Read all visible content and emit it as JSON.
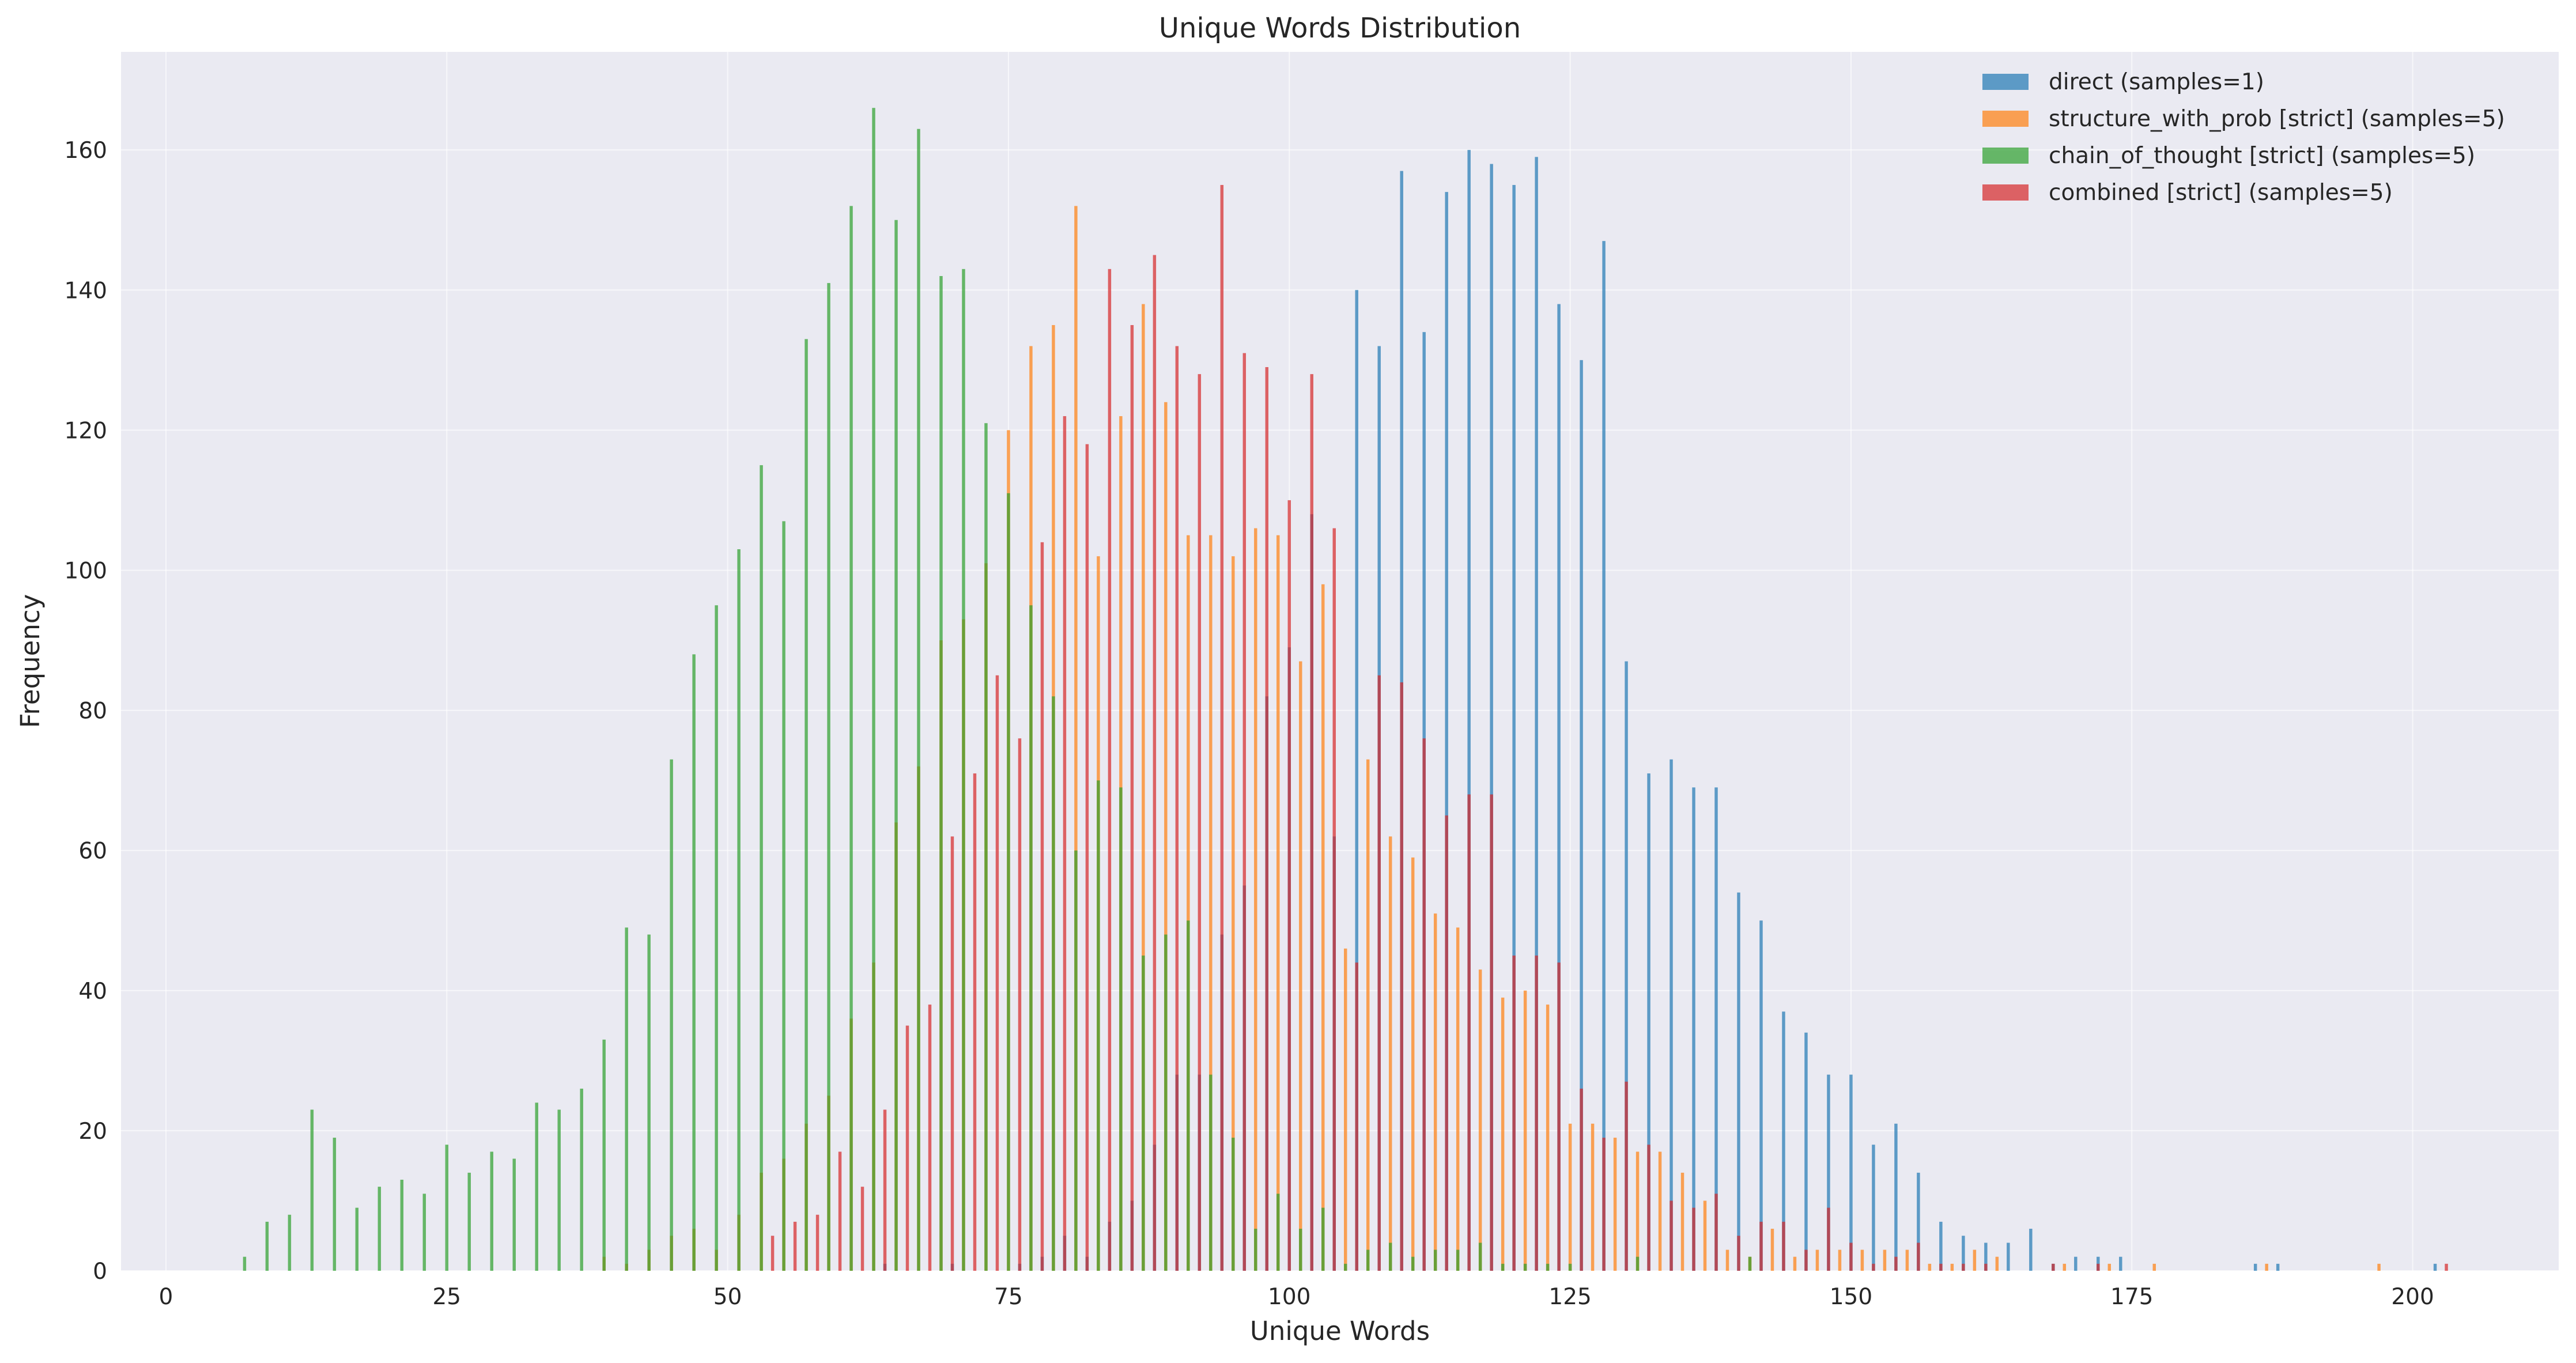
{
  "chart_data": {
    "type": "bar",
    "title": "Unique Words Distribution",
    "xlabel": "Unique Words",
    "ylabel": "Frequency",
    "xlim": [
      -4,
      213
    ],
    "ylim": [
      0,
      174
    ],
    "xticks": [
      0,
      25,
      50,
      75,
      100,
      125,
      150,
      175,
      200
    ],
    "yticks": [
      0,
      20,
      40,
      60,
      80,
      100,
      120,
      140,
      160
    ],
    "grid": true,
    "legend": "top-right",
    "series": [
      {
        "name": "direct (samples=1)",
        "color": "#1f77b4",
        "points": [
          [
            64,
            1
          ],
          [
            70,
            1
          ],
          [
            76,
            1
          ],
          [
            78,
            2
          ],
          [
            80,
            5
          ],
          [
            82,
            2
          ],
          [
            84,
            7
          ],
          [
            86,
            10
          ],
          [
            88,
            18
          ],
          [
            90,
            28
          ],
          [
            92,
            28
          ],
          [
            94,
            48
          ],
          [
            96,
            55
          ],
          [
            98,
            82
          ],
          [
            100,
            89
          ],
          [
            102,
            108
          ],
          [
            104,
            62
          ],
          [
            106,
            140
          ],
          [
            108,
            132
          ],
          [
            110,
            157
          ],
          [
            112,
            134
          ],
          [
            114,
            154
          ],
          [
            116,
            160
          ],
          [
            118,
            158
          ],
          [
            120,
            155
          ],
          [
            122,
            159
          ],
          [
            124,
            138
          ],
          [
            126,
            130
          ],
          [
            128,
            147
          ],
          [
            130,
            87
          ],
          [
            132,
            71
          ],
          [
            134,
            73
          ],
          [
            136,
            69
          ],
          [
            138,
            69
          ],
          [
            140,
            54
          ],
          [
            142,
            50
          ],
          [
            144,
            37
          ],
          [
            146,
            34
          ],
          [
            148,
            28
          ],
          [
            150,
            28
          ],
          [
            152,
            18
          ],
          [
            154,
            21
          ],
          [
            156,
            14
          ],
          [
            158,
            7
          ],
          [
            160,
            5
          ],
          [
            162,
            4
          ],
          [
            164,
            4
          ],
          [
            166,
            6
          ],
          [
            168,
            1
          ],
          [
            170,
            2
          ],
          [
            172,
            2
          ],
          [
            174,
            2
          ],
          [
            186,
            1
          ],
          [
            188,
            1
          ],
          [
            202,
            1
          ]
        ]
      },
      {
        "name": "structure_with_prob [strict] (samples=5)",
        "color": "#ff7f0e",
        "points": [
          [
            39,
            2
          ],
          [
            41,
            1
          ],
          [
            43,
            3
          ],
          [
            45,
            5
          ],
          [
            47,
            6
          ],
          [
            49,
            3
          ],
          [
            51,
            8
          ],
          [
            53,
            14
          ],
          [
            55,
            16
          ],
          [
            57,
            21
          ],
          [
            59,
            25
          ],
          [
            61,
            36
          ],
          [
            63,
            44
          ],
          [
            65,
            64
          ],
          [
            67,
            72
          ],
          [
            69,
            90
          ],
          [
            71,
            93
          ],
          [
            73,
            101
          ],
          [
            75,
            120
          ],
          [
            77,
            132
          ],
          [
            79,
            135
          ],
          [
            81,
            152
          ],
          [
            83,
            102
          ],
          [
            85,
            122
          ],
          [
            87,
            138
          ],
          [
            89,
            124
          ],
          [
            91,
            105
          ],
          [
            93,
            105
          ],
          [
            95,
            102
          ],
          [
            97,
            106
          ],
          [
            99,
            105
          ],
          [
            101,
            87
          ],
          [
            103,
            98
          ],
          [
            105,
            46
          ],
          [
            107,
            73
          ],
          [
            109,
            62
          ],
          [
            111,
            59
          ],
          [
            113,
            51
          ],
          [
            115,
            49
          ],
          [
            117,
            43
          ],
          [
            119,
            39
          ],
          [
            121,
            40
          ],
          [
            123,
            38
          ],
          [
            125,
            21
          ],
          [
            127,
            21
          ],
          [
            129,
            19
          ],
          [
            131,
            17
          ],
          [
            133,
            17
          ],
          [
            135,
            14
          ],
          [
            137,
            10
          ],
          [
            139,
            3
          ],
          [
            141,
            2
          ],
          [
            143,
            6
          ],
          [
            145,
            2
          ],
          [
            147,
            3
          ],
          [
            149,
            3
          ],
          [
            151,
            3
          ],
          [
            153,
            3
          ],
          [
            155,
            3
          ],
          [
            157,
            1
          ],
          [
            159,
            1
          ],
          [
            161,
            3
          ],
          [
            163,
            2
          ],
          [
            169,
            1
          ],
          [
            173,
            1
          ],
          [
            177,
            1
          ],
          [
            187,
            1
          ],
          [
            197,
            1
          ]
        ]
      },
      {
        "name": "chain_of_thought [strict] (samples=5)",
        "color": "#2ca02c",
        "points": [
          [
            7,
            2
          ],
          [
            9,
            7
          ],
          [
            11,
            8
          ],
          [
            13,
            23
          ],
          [
            15,
            19
          ],
          [
            17,
            9
          ],
          [
            19,
            12
          ],
          [
            21,
            13
          ],
          [
            23,
            11
          ],
          [
            25,
            18
          ],
          [
            27,
            14
          ],
          [
            29,
            17
          ],
          [
            31,
            16
          ],
          [
            33,
            24
          ],
          [
            35,
            23
          ],
          [
            37,
            26
          ],
          [
            39,
            33
          ],
          [
            41,
            49
          ],
          [
            43,
            48
          ],
          [
            45,
            73
          ],
          [
            47,
            88
          ],
          [
            49,
            95
          ],
          [
            51,
            103
          ],
          [
            53,
            115
          ],
          [
            55,
            107
          ],
          [
            57,
            133
          ],
          [
            59,
            141
          ],
          [
            61,
            152
          ],
          [
            63,
            166
          ],
          [
            65,
            150
          ],
          [
            67,
            163
          ],
          [
            69,
            142
          ],
          [
            71,
            143
          ],
          [
            73,
            121
          ],
          [
            75,
            111
          ],
          [
            77,
            95
          ],
          [
            79,
            82
          ],
          [
            81,
            60
          ],
          [
            83,
            70
          ],
          [
            85,
            69
          ],
          [
            87,
            45
          ],
          [
            89,
            48
          ],
          [
            91,
            50
          ],
          [
            93,
            28
          ],
          [
            95,
            19
          ],
          [
            97,
            6
          ],
          [
            99,
            11
          ],
          [
            101,
            6
          ],
          [
            103,
            9
          ],
          [
            105,
            1
          ],
          [
            107,
            3
          ],
          [
            109,
            4
          ],
          [
            111,
            2
          ],
          [
            113,
            3
          ],
          [
            115,
            3
          ],
          [
            117,
            4
          ],
          [
            119,
            1
          ],
          [
            121,
            1
          ],
          [
            123,
            1
          ],
          [
            125,
            1
          ],
          [
            131,
            2
          ],
          [
            141,
            2
          ]
        ]
      },
      {
        "name": "combined [strict] (samples=5)",
        "color": "#d62728",
        "points": [
          [
            54,
            5
          ],
          [
            56,
            7
          ],
          [
            58,
            8
          ],
          [
            60,
            17
          ],
          [
            62,
            12
          ],
          [
            64,
            23
          ],
          [
            66,
            35
          ],
          [
            68,
            38
          ],
          [
            70,
            62
          ],
          [
            72,
            71
          ],
          [
            74,
            85
          ],
          [
            76,
            76
          ],
          [
            78,
            104
          ],
          [
            80,
            122
          ],
          [
            82,
            118
          ],
          [
            84,
            143
          ],
          [
            86,
            135
          ],
          [
            88,
            145
          ],
          [
            90,
            132
          ],
          [
            92,
            128
          ],
          [
            94,
            155
          ],
          [
            96,
            131
          ],
          [
            98,
            129
          ],
          [
            100,
            110
          ],
          [
            102,
            128
          ],
          [
            104,
            106
          ],
          [
            106,
            44
          ],
          [
            108,
            85
          ],
          [
            110,
            84
          ],
          [
            112,
            76
          ],
          [
            114,
            65
          ],
          [
            116,
            68
          ],
          [
            118,
            68
          ],
          [
            120,
            45
          ],
          [
            122,
            45
          ],
          [
            124,
            44
          ],
          [
            126,
            26
          ],
          [
            128,
            19
          ],
          [
            130,
            27
          ],
          [
            132,
            18
          ],
          [
            134,
            10
          ],
          [
            136,
            9
          ],
          [
            138,
            11
          ],
          [
            140,
            5
          ],
          [
            142,
            7
          ],
          [
            144,
            7
          ],
          [
            146,
            3
          ],
          [
            148,
            9
          ],
          [
            150,
            4
          ],
          [
            152,
            1
          ],
          [
            154,
            2
          ],
          [
            156,
            4
          ],
          [
            158,
            1
          ],
          [
            160,
            1
          ],
          [
            162,
            1
          ],
          [
            168,
            1
          ],
          [
            172,
            1
          ],
          [
            203,
            1
          ]
        ]
      }
    ]
  }
}
